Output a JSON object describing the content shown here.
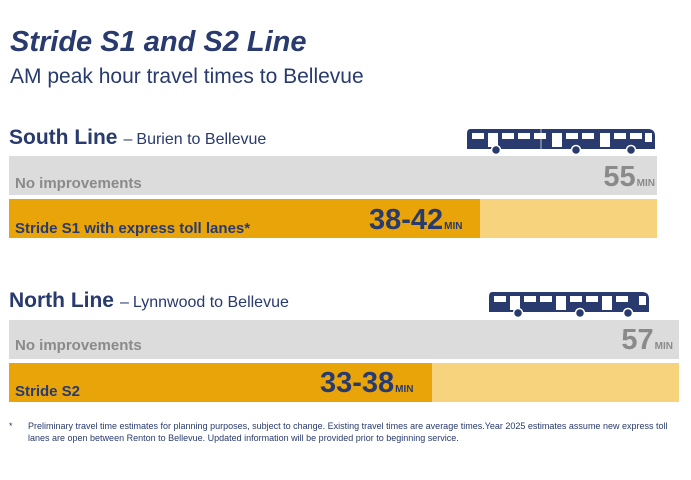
{
  "title": "Stride S1 and S2 Line",
  "subtitle": "AM peak hour travel times to Bellevue",
  "chart_data": [
    {
      "type": "bar",
      "orientation": "horizontal",
      "title": "South Line",
      "route": "Burien to Bellevue",
      "unit": "MIN",
      "categories": [
        "No improvements",
        "Stride S1 with express toll lanes*"
      ],
      "value_labels": [
        "55",
        "38-42"
      ],
      "values": [
        55,
        [
          38,
          42
        ]
      ]
    },
    {
      "type": "bar",
      "orientation": "horizontal",
      "title": "North Line",
      "route": "Lynnwood to Bellevue",
      "unit": "MIN",
      "categories": [
        "No improvements",
        "Stride S2"
      ],
      "value_labels": [
        "57",
        "33-38"
      ],
      "values": [
        57,
        [
          33,
          38
        ]
      ]
    }
  ],
  "colors": {
    "navy": "#283a6e",
    "gold": "#e8a408",
    "pale_gold": "#f7d37e",
    "gray": "#dcdcdc"
  },
  "icons": [
    "bus-icon"
  ],
  "footnote": {
    "marker": "*",
    "text": "Preliminary travel time estimates for planning purposes, subject to change. Existing travel times are average times.Year 2025 estimates assume new express toll lanes are open between Renton to Bellevue. Updated information will be provided prior to beginning service."
  },
  "dash": "–"
}
